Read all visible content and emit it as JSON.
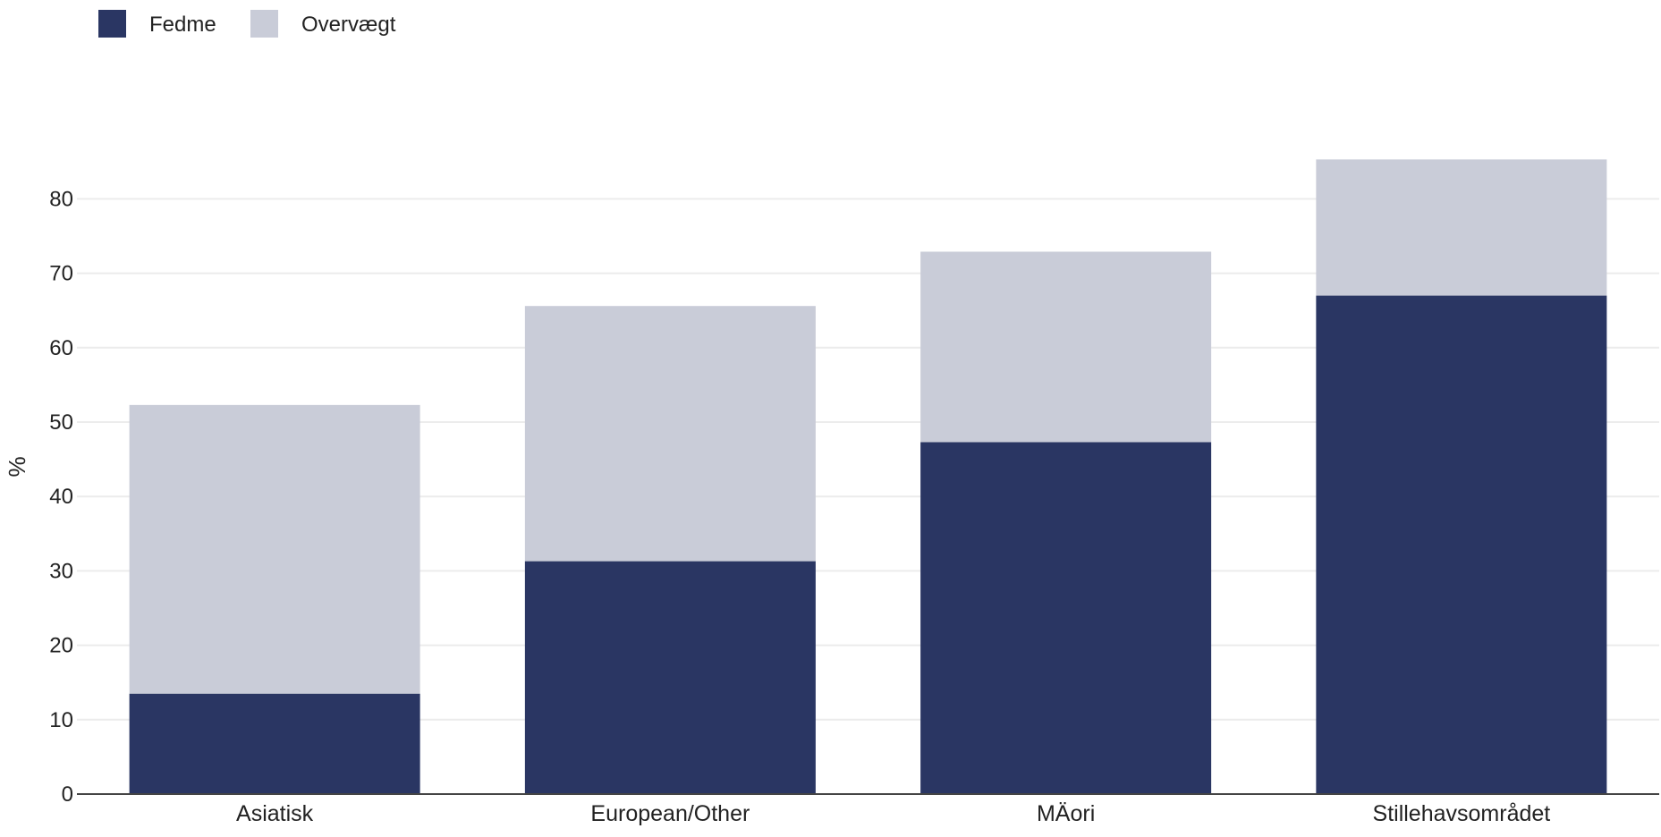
{
  "chart_data": {
    "type": "bar",
    "stacked": true,
    "categories": [
      "Asiatisk",
      "European/Other",
      "MÄori",
      "Stillehavsområdet"
    ],
    "series": [
      {
        "name": "Fedme",
        "values": [
          13.5,
          31.3,
          47.3,
          67.0
        ],
        "color": "#2a3663"
      },
      {
        "name": "Overvægt",
        "values": [
          38.8,
          34.3,
          25.6,
          18.3
        ],
        "color": "#c9ccd8"
      }
    ],
    "ylabel": "%",
    "xlabel": "",
    "ylim": [
      0,
      88
    ],
    "yticks": [
      0,
      10,
      20,
      30,
      40,
      50,
      60,
      70,
      80
    ],
    "grid": true,
    "legend_position": "top-left"
  }
}
